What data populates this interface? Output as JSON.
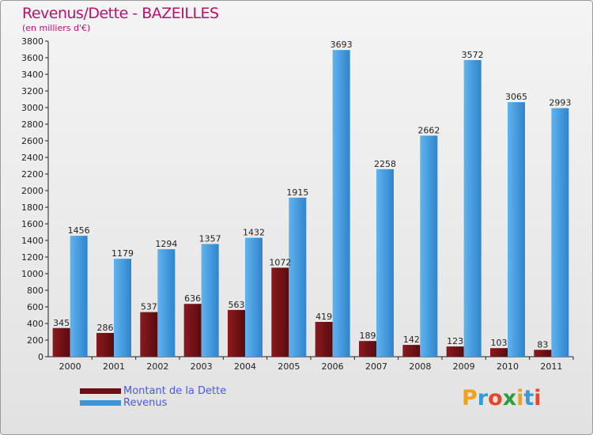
{
  "title": "Revenus/Dette - BAZEILLES",
  "subtitle": "(en milliers d'€)",
  "colors": {
    "debt": "#6b0f13",
    "revenue": "#3b95db",
    "title": "#b5126e",
    "legend_text": "#4a5ad8"
  },
  "legend": [
    {
      "label": "Montant de la Dette",
      "color": "#6b0f13"
    },
    {
      "label": "Revenus",
      "color": "#3b95db"
    }
  ],
  "logo": {
    "text": "Proxiti",
    "letters": [
      {
        "ch": "P",
        "color": "#f0a21c"
      },
      {
        "ch": "r",
        "color": "#3a9ad9"
      },
      {
        "ch": "o",
        "color": "#e8452b"
      },
      {
        "ch": "x",
        "color": "#2a9e3a"
      },
      {
        "ch": "i",
        "color": "#f0a21c"
      },
      {
        "ch": "t",
        "color": "#3a9ad9"
      },
      {
        "ch": "i",
        "color": "#e8452b"
      }
    ]
  },
  "chart_data": {
    "type": "bar",
    "title": "Revenus/Dette - BAZEILLES",
    "subtitle": "(en milliers d'€)",
    "categories": [
      "2000",
      "2001",
      "2002",
      "2003",
      "2004",
      "2005",
      "2006",
      "2007",
      "2008",
      "2009",
      "2010",
      "2011"
    ],
    "series": [
      {
        "name": "Montant de la Dette",
        "color": "#6b0f13",
        "values": [
          345,
          286,
          537,
          636,
          563,
          1072,
          419,
          189,
          142,
          123,
          103,
          83
        ]
      },
      {
        "name": "Revenus",
        "color": "#3b95db",
        "values": [
          1456,
          1179,
          1294,
          1357,
          1432,
          1915,
          3693,
          2258,
          2662,
          3572,
          3065,
          2993
        ]
      }
    ],
    "ylim": [
      0,
      3800
    ],
    "yticks": [
      0,
      200,
      400,
      600,
      800,
      1000,
      1200,
      1400,
      1600,
      1800,
      2000,
      2200,
      2400,
      2600,
      2800,
      3000,
      3200,
      3400,
      3600,
      3800
    ],
    "grid": false,
    "legend_position": "bottom-left"
  }
}
